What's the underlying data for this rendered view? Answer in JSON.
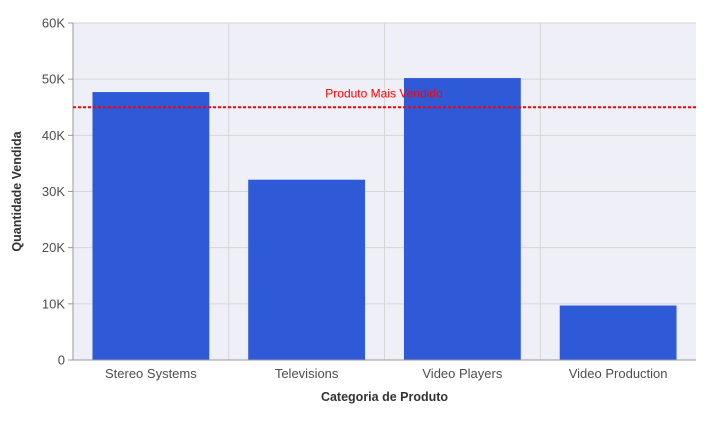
{
  "chart_data": {
    "type": "bar",
    "categories": [
      "Stereo Systems",
      "Televisions",
      "Video Players",
      "Video Production"
    ],
    "values": [
      47700,
      32100,
      50200,
      9700
    ],
    "xlabel": "Categoria de Produto",
    "ylabel": "Quantidade Vendida",
    "ylim": [
      0,
      60000
    ],
    "y_ticks": [
      0,
      10000,
      20000,
      30000,
      40000,
      50000,
      60000
    ],
    "y_tick_labels": [
      "0",
      "10K",
      "20K",
      "30K",
      "40K",
      "50K",
      "60K"
    ],
    "grid": true,
    "legend": "none",
    "reference_line": {
      "value": 45000,
      "label": "Produto Mais Vendido",
      "color": "#ff0000",
      "style": "dashed"
    },
    "colors": {
      "bar": "#2e5ad8",
      "plot_background": "#efeff8",
      "grid": "#d6d6d6",
      "axis": "#999999"
    }
  }
}
